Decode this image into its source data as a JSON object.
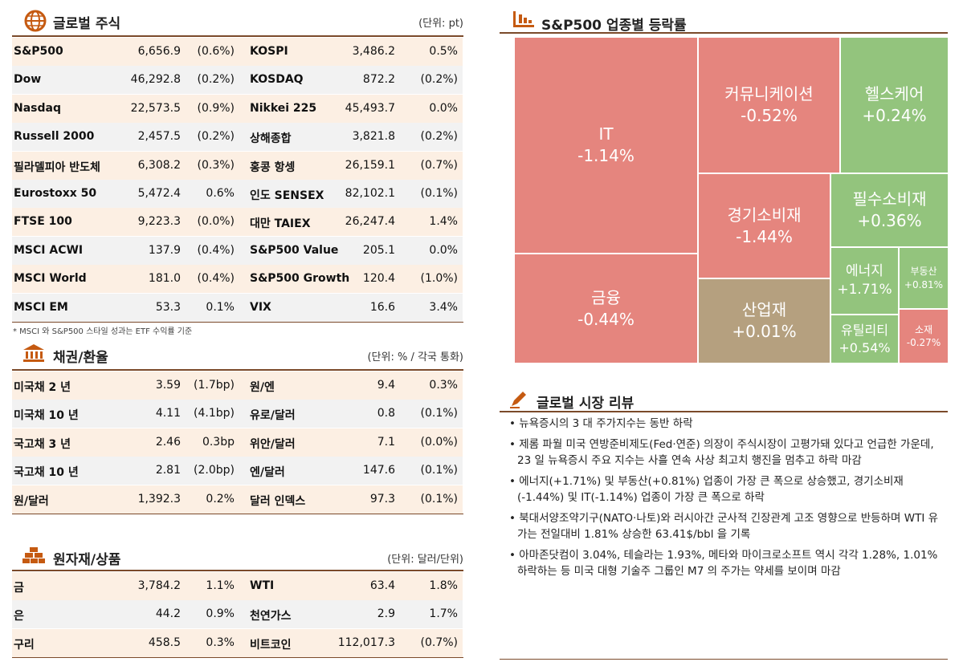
{
  "equities": {
    "title": "글로벌 주식",
    "unit": "(단위: pt)",
    "note": "* MSCI 와 S&P500 스타일 성과는 ETF 수익률 기준",
    "rows": [
      [
        "S&P500",
        "6,656.9",
        "(0.6%)",
        "KOSPI",
        "3,486.2",
        "0.5%"
      ],
      [
        "Dow",
        "46,292.8",
        "(0.2%)",
        "KOSDAQ",
        "872.2",
        "(0.2%)"
      ],
      [
        "Nasdaq",
        "22,573.5",
        "(0.9%)",
        "Nikkei 225",
        "45,493.7",
        "0.0%"
      ],
      [
        "Russell 2000",
        "2,457.5",
        "(0.2%)",
        "상해종합",
        "3,821.8",
        "(0.2%)"
      ],
      [
        "필라델피아 반도체",
        "6,308.2",
        "(0.3%)",
        "홍콩 항셍",
        "26,159.1",
        "(0.7%)"
      ],
      [
        "Eurostoxx 50",
        "5,472.4",
        "0.6%",
        "인도 SENSEX",
        "82,102.1",
        "(0.1%)"
      ],
      [
        "FTSE 100",
        "9,223.3",
        "(0.0%)",
        "대만 TAIEX",
        "26,247.4",
        "1.4%"
      ],
      [
        "MSCI ACWI",
        "137.9",
        "(0.4%)",
        "S&P500 Value",
        "205.1",
        "0.0%"
      ],
      [
        "MSCI World",
        "181.0",
        "(0.4%)",
        "S&P500 Growth",
        "120.4",
        "(1.0%)"
      ],
      [
        "MSCI EM",
        "53.3",
        "0.1%",
        "VIX",
        "16.6",
        "3.4%"
      ]
    ]
  },
  "bonds": {
    "title": "채권/환율",
    "unit": "(단위: % / 각국 통화)",
    "rows": [
      [
        "미국채 2 년",
        "3.59",
        "(1.7bp)",
        "원/엔",
        "9.4",
        "0.3%"
      ],
      [
        "미국채 10 년",
        "4.11",
        "(4.1bp)",
        "유로/달러",
        "0.8",
        "(0.1%)"
      ],
      [
        "국고채 3 년",
        "2.46",
        "0.3bp",
        "위안/달러",
        "7.1",
        "(0.0%)"
      ],
      [
        "국고채 10 년",
        "2.81",
        "(2.0bp)",
        "엔/달러",
        "147.6",
        "(0.1%)"
      ],
      [
        "원/달러",
        "1,392.3",
        "0.2%",
        "달러 인덱스",
        "97.3",
        "(0.1%)"
      ]
    ]
  },
  "commodities": {
    "title": "원자재/상품",
    "unit": "(단위: 달러/단위)",
    "rows": [
      [
        "금",
        "3,784.2",
        "1.1%",
        "WTI",
        "63.4",
        "1.8%"
      ],
      [
        "은",
        "44.2",
        "0.9%",
        "천연가스",
        "2.9",
        "1.7%"
      ],
      [
        "구리",
        "458.5",
        "0.3%",
        "비트코인",
        "112,017.3",
        "(0.7%)"
      ]
    ]
  },
  "sectors": {
    "title": "S&P500 업종별 등락률",
    "cells": [
      {
        "label": "IT",
        "change": "-1.14%"
      },
      {
        "label": "금융",
        "change": "-0.44%"
      },
      {
        "label": "커뮤니케이션",
        "change": "-0.52%"
      },
      {
        "label": "경기소비재",
        "change": "-1.44%"
      },
      {
        "label": "산업재",
        "change": "+0.01%"
      },
      {
        "label": "헬스케어",
        "change": "+0.24%"
      },
      {
        "label": "필수소비재",
        "change": "+0.36%"
      },
      {
        "label": "에너지",
        "change": "+1.71%"
      },
      {
        "label": "부동산",
        "change": "+0.81%"
      },
      {
        "label": "유틸리티",
        "change": "+0.54%"
      },
      {
        "label": "소재",
        "change": "-0.27%"
      }
    ]
  },
  "review": {
    "title": "글로벌 시장 리뷰",
    "items": [
      "뉴욕증시의 3 대 주가지수는 동반 하락",
      "제롬 파월 미국 연방준비제도(Fed·연준) 의장이 주식시장이 고평가돼 있다고 언급한 가운데, 23 일 뉴욕증시 주요 지수는 사흘 연속 사상 최고치 행진을 멈추고 하락 마감",
      "에너지(+1.71%) 및 부동산(+0.81%) 업종이 가장 큰 폭으로 상승했고, 경기소비재(-1.44%) 및 IT(-1.14%) 업종이 가장 큰 폭으로 하락",
      "북대서양조약기구(NATO·나토)와 러시아간 군사적 긴장관계 고조 영향으로 반등하며 WTI 유가는 전일대비 1.81% 상승한 63.41$/bbl 을 기록",
      "아마존닷컴이 3.04%, 테슬라는 1.93%, 메타와 마이크로소프트 역시 각각 1.28%, 1.01% 하락하는 등 미국 대형 기술주 그룹인 M7 의 주가는 약세를 보이며 마감"
    ]
  }
}
